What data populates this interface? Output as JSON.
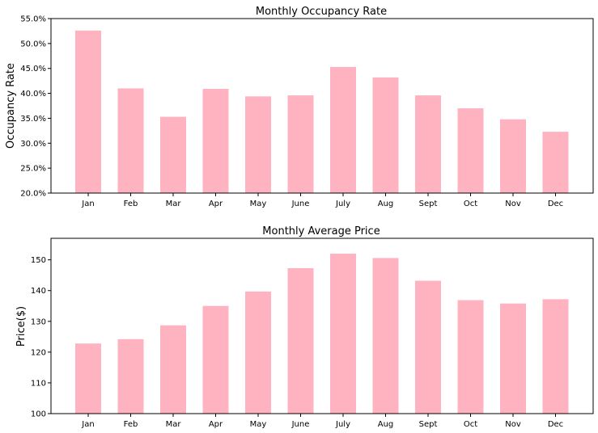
{
  "chart_data": [
    {
      "type": "bar",
      "title": "Monthly Occupancy Rate",
      "xlabel": "",
      "ylabel": "Occupancy Rate",
      "categories": [
        "Jan",
        "Feb",
        "Mar",
        "Apr",
        "May",
        "June",
        "July",
        "Aug",
        "Sept",
        "Oct",
        "Nov",
        "Dec"
      ],
      "values": [
        52.6,
        41.0,
        35.3,
        40.9,
        39.4,
        39.6,
        45.3,
        43.2,
        39.6,
        37.0,
        34.8,
        32.3
      ],
      "ylim": [
        20,
        55
      ],
      "yticks": [
        20,
        25,
        30,
        35,
        40,
        45,
        50,
        55
      ],
      "ytick_labels": [
        "20.0%",
        "25.0%",
        "30.0%",
        "35.0%",
        "40.0%",
        "45.0%",
        "50.0%",
        "55.0%"
      ],
      "grid": false,
      "bar_color": "#ffb3c1"
    },
    {
      "type": "bar",
      "title": "Monthly Average Price",
      "xlabel": "",
      "ylabel": "Price($)",
      "categories": [
        "Jan",
        "Feb",
        "Mar",
        "Apr",
        "May",
        "June",
        "July",
        "Aug",
        "Sept",
        "Oct",
        "Nov",
        "Dec"
      ],
      "values": [
        122.8,
        124.2,
        128.7,
        135.0,
        139.7,
        147.3,
        152.0,
        150.6,
        143.2,
        136.9,
        135.8,
        137.2
      ],
      "ylim": [
        100,
        157
      ],
      "yticks": [
        100,
        110,
        120,
        130,
        140,
        150
      ],
      "ytick_labels": [
        "100",
        "110",
        "120",
        "130",
        "140",
        "150"
      ],
      "grid": false,
      "bar_color": "#ffb3c1"
    }
  ]
}
